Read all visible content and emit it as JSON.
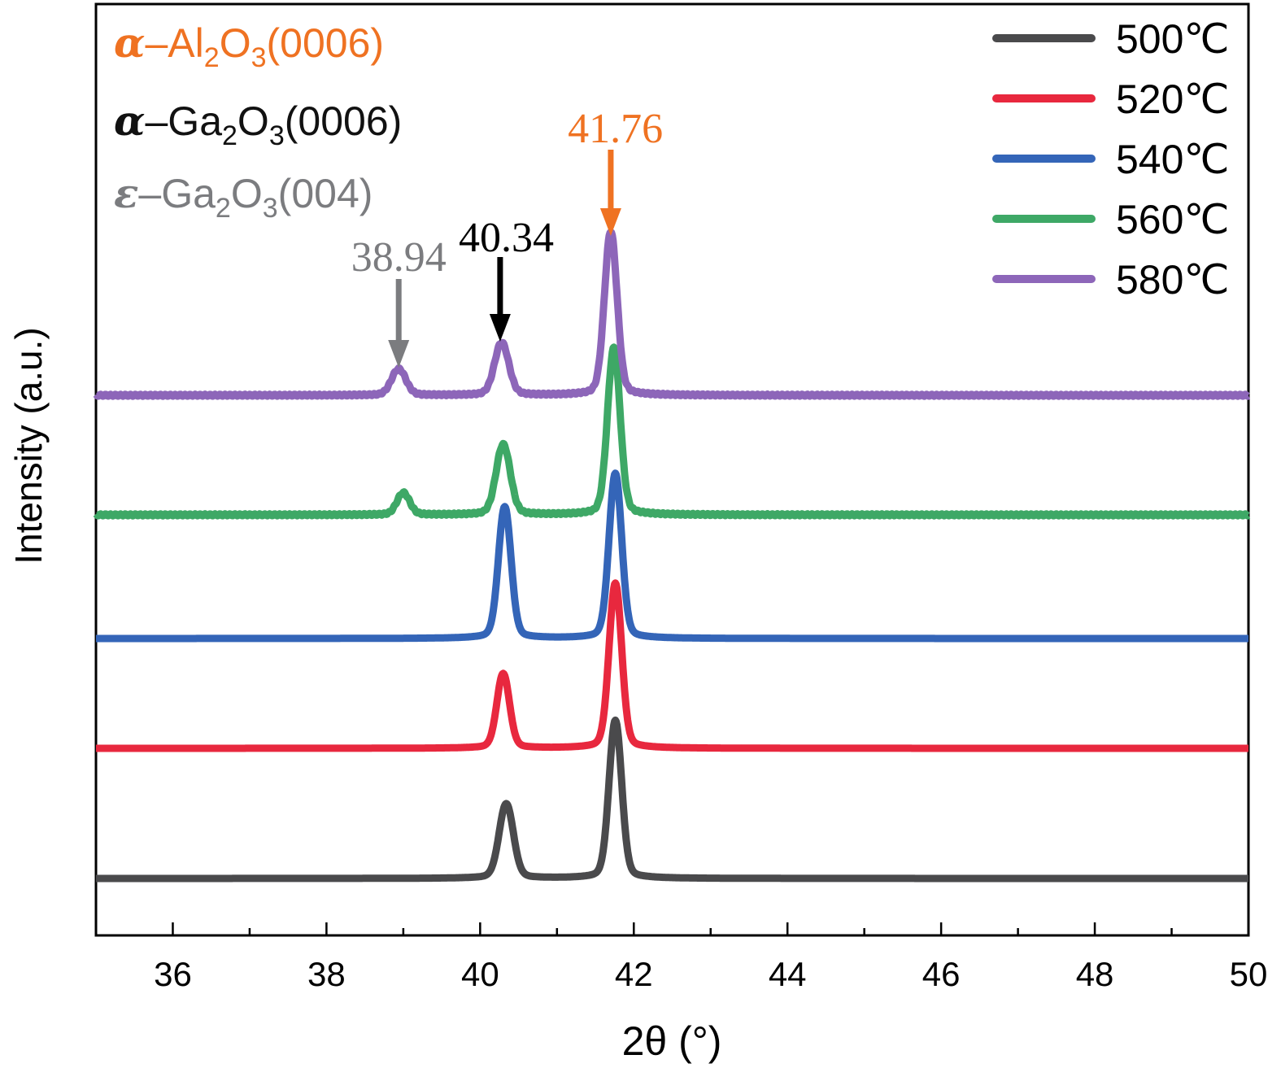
{
  "chart_data": {
    "type": "line",
    "xlabel": "2θ (°)",
    "ylabel": "Intensity (a.u.)",
    "xlim": [
      35,
      50
    ],
    "x_ticks": [
      "36",
      "38",
      "40",
      "42",
      "44",
      "46",
      "48",
      "50"
    ],
    "y_unit": "a.u.",
    "legend_placement": "top-right",
    "grid": false,
    "series": [
      {
        "name": "500℃",
        "color": "#4a4a4c",
        "offset": 0,
        "peaks": [
          {
            "x": 40.34,
            "h": 85,
            "w": 0.09
          },
          {
            "x": 41.76,
            "h": 180,
            "w": 0.08
          }
        ]
      },
      {
        "name": "520℃",
        "color": "#e8283e",
        "offset": 160,
        "peaks": [
          {
            "x": 40.3,
            "h": 85,
            "w": 0.08
          },
          {
            "x": 41.76,
            "h": 188,
            "w": 0.08
          }
        ]
      },
      {
        "name": "540℃",
        "color": "#3465b8",
        "offset": 295,
        "peaks": [
          {
            "x": 40.32,
            "h": 150,
            "w": 0.08
          },
          {
            "x": 41.76,
            "h": 188,
            "w": 0.08
          }
        ]
      },
      {
        "name": "560℃",
        "color": "#3ea866",
        "offset": 447,
        "peaks": [
          {
            "x": 39.0,
            "h": 25,
            "w": 0.08
          },
          {
            "x": 40.3,
            "h": 80,
            "w": 0.09
          },
          {
            "x": 41.74,
            "h": 190,
            "w": 0.08
          }
        ]
      },
      {
        "name": "580℃",
        "color": "#8d66b9",
        "offset": 594,
        "peaks": [
          {
            "x": 38.94,
            "h": 30,
            "w": 0.09
          },
          {
            "x": 40.28,
            "h": 60,
            "w": 0.09
          },
          {
            "x": 41.7,
            "h": 187,
            "w": 0.08
          }
        ]
      }
    ],
    "phase_labels": [
      {
        "greek": "α",
        "dash": "–",
        "formula": [
          "Al",
          "2",
          "O",
          "3",
          "(0006)"
        ],
        "color": "#ef7222"
      },
      {
        "greek": "α",
        "dash": "–",
        "formula": [
          "Ga",
          "2",
          "O",
          "3",
          "(0006)"
        ],
        "color": "#111111"
      },
      {
        "greek": "ε",
        "dash": "–",
        "formula": [
          "Ga",
          "2",
          "O",
          "3",
          "(004)"
        ],
        "color": "#7b7c7f"
      }
    ],
    "annotations": [
      {
        "text": "38.94",
        "x": 38.94,
        "color": "#7b7c7f"
      },
      {
        "text": "40.34",
        "x": 40.26,
        "color": "#000000"
      },
      {
        "text": "41.76",
        "x": 41.7,
        "color": "#ef7222"
      }
    ]
  }
}
